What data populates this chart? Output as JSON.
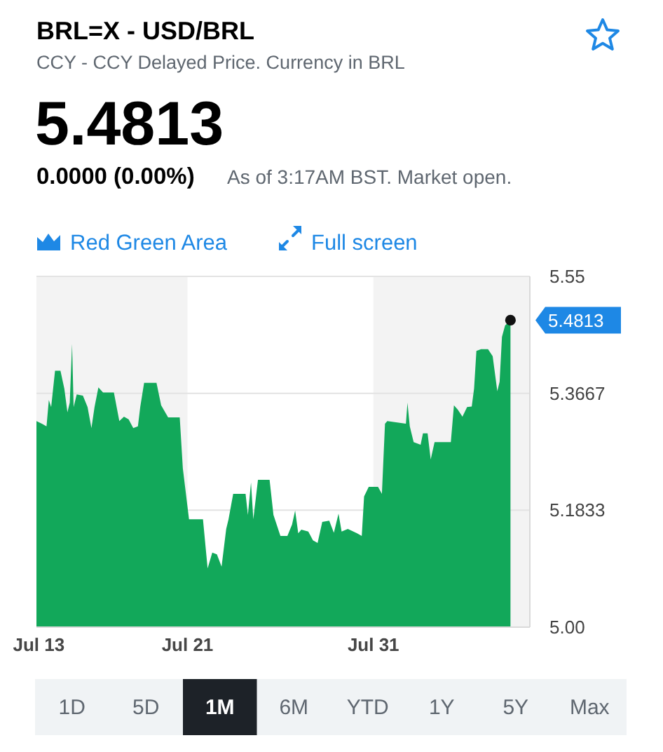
{
  "chart_data": {
    "type": "area",
    "title": "BRL=X - USD/BRL",
    "subtitle": "CCY - CCY Delayed Price. Currency in BRL",
    "annotations": [
      "5.4813",
      "0.0000 (0.00%)",
      "As of 3:17AM BST. Market open.",
      "Red Green Area",
      "Full screen",
      "1D",
      "5D",
      "1M",
      "6M",
      "YTD",
      "1Y",
      "5Y",
      "Max",
      {
        "text": "5.4813",
        "x": "--08-07T09:00",
        "y": 5.4813
      }
    ],
    "x": [
      "--07-12T21:00",
      "--07-13T04:00",
      "--07-13T10:00",
      "--07-13T13:00",
      "--07-13T16:00",
      "--07-13T21:00",
      "--07-14T04:00",
      "--07-14T09:00",
      "--07-14T13:00",
      "--07-14T16:00",
      "--07-14T19:00",
      "--07-14T21:00",
      "--07-15T01:00",
      "--07-15T09:00",
      "--07-15T15:00",
      "--07-15T20:00",
      "--07-16T00:00",
      "--07-16T05:00",
      "--07-16T11:00",
      "--07-17T01:00",
      "--07-17T08:00",
      "--07-17T14:00",
      "--07-17T20:00",
      "--07-18T02:00",
      "--07-18T08:00",
      "--07-18T11:00",
      "--07-18T16:00",
      "--07-19T08:00",
      "--07-19T14:00",
      "--07-19T23:00",
      "--07-20T14:00",
      "--07-20T18:00",
      "--07-21T02:00",
      "--07-21T20:00",
      "--07-22T02:00",
      "--07-22T08:00",
      "--07-22T14:00",
      "--07-22T20:00",
      "--07-23T02:00",
      "--07-23T05:00",
      "--07-23T11:00",
      "--07-24T03:00",
      "--07-24T06:00",
      "--07-24T10:00",
      "--07-24T13:00",
      "--07-24T19:00",
      "--07-25T10:00",
      "--07-25T15:00",
      "--07-26T00:00",
      "--07-26T09:00",
      "--07-26T15:00",
      "--07-26T19:00",
      "--07-26T23:00",
      "--07-27T03:00",
      "--07-27T12:00",
      "--07-27T18:00",
      "--07-28T00:00",
      "--07-28T06:00",
      "--07-28T15:00",
      "--07-28T21:00",
      "--07-29T03:00",
      "--07-29T07:00",
      "--07-29T15:00",
      "--07-30T03:00",
      "--07-30T09:00",
      "--07-30T12:00",
      "--07-30T18:00",
      "--07-31T06:00",
      "--07-31T11:00",
      "--07-31T15:00",
      "--07-31T18:00",
      "--08-01T18:00",
      "--08-01T20:00",
      "--08-01T23:00",
      "--08-02T04:00",
      "--08-02T13:00",
      "--08-02T16:00",
      "--08-02T22:00",
      "--08-03T02:00",
      "--08-03T07:00",
      "--08-04T04:00",
      "--08-04T08:00",
      "--08-04T13:00",
      "--08-04T19:00",
      "--08-05T01:00",
      "--08-05T07:00",
      "--08-05T10:00",
      "--08-05T13:00",
      "--08-05T19:00",
      "--08-06T04:00",
      "--08-06T10:00",
      "--08-06T16:00",
      "--08-06T19:00",
      "--08-06T22:00",
      "--08-07T02:00",
      "--08-07T09:00"
    ],
    "values": [
      5.323,
      5.319,
      5.315,
      5.356,
      5.345,
      5.402,
      5.402,
      5.374,
      5.337,
      5.352,
      5.444,
      5.345,
      5.365,
      5.363,
      5.345,
      5.312,
      5.345,
      5.376,
      5.368,
      5.368,
      5.323,
      5.33,
      5.326,
      5.312,
      5.315,
      5.345,
      5.383,
      5.383,
      5.348,
      5.329,
      5.329,
      5.249,
      5.169,
      5.169,
      5.092,
      5.117,
      5.114,
      5.095,
      5.154,
      5.169,
      5.209,
      5.209,
      5.176,
      5.227,
      5.169,
      5.231,
      5.231,
      5.176,
      5.143,
      5.143,
      5.161,
      5.183,
      5.147,
      5.153,
      5.15,
      5.136,
      5.132,
      5.165,
      5.167,
      5.148,
      5.178,
      5.15,
      5.154,
      5.147,
      5.143,
      5.205,
      5.22,
      5.22,
      5.209,
      5.319,
      5.323,
      5.319,
      5.352,
      5.315,
      5.29,
      5.286,
      5.304,
      5.304,
      5.263,
      5.29,
      5.29,
      5.348,
      5.341,
      5.33,
      5.345,
      5.346,
      5.374,
      5.433,
      5.436,
      5.436,
      5.425,
      5.37,
      5.385,
      5.455,
      5.473,
      5.4813
    ],
    "color": "#12a85a",
    "xlim": [
      "--07-12T21:00",
      "--08-08T10:00"
    ],
    "xticks": [
      {
        "value": "--07-13",
        "label": "Jul 13"
      },
      {
        "value": "--07-21",
        "label": "Jul 21"
      },
      {
        "value": "--07-31",
        "label": "Jul 31"
      }
    ],
    "ylim": [
      5,
      5.55
    ],
    "yticks": [
      {
        "value": 5,
        "label": "5.00"
      },
      5.1833,
      5.3667,
      5.55
    ],
    "grid": "y",
    "bands": [
      {
        "axis": "x",
        "from": "--07-12T21:00",
        "to": "--07-21",
        "color": "#f3f3f3"
      },
      {
        "axis": "x",
        "from": "--07-31",
        "to": "--08-08T10:00",
        "color": "#f3f3f3"
      }
    ]
  }
}
